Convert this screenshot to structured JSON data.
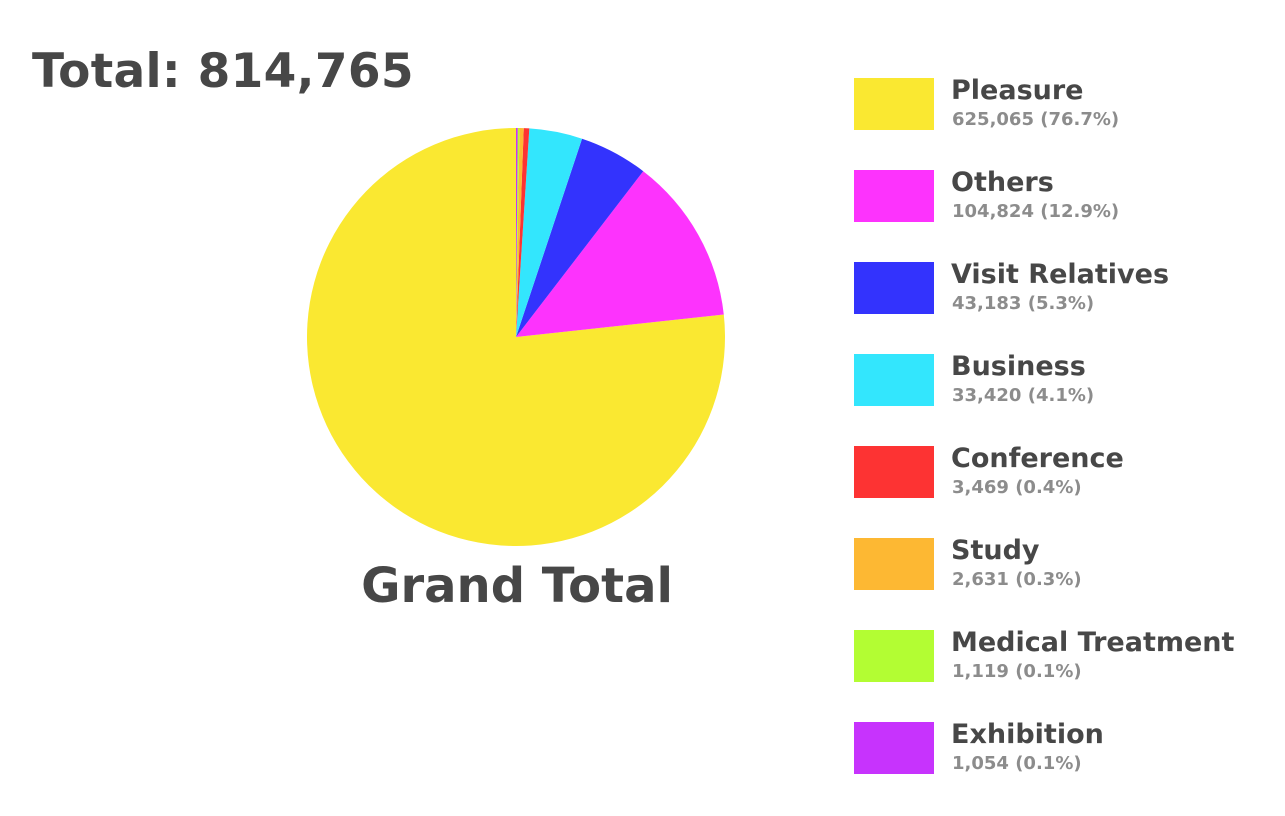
{
  "header": {
    "total_text": "Total: 814,765"
  },
  "chart_data": {
    "type": "pie",
    "title": "Grand Total",
    "total": 814765,
    "legend_position": "right",
    "slices": [
      {
        "name": "Pleasure",
        "value": 625065,
        "percent": 76.7,
        "label": "625,065 (76.7%)",
        "color": "#fae831"
      },
      {
        "name": "Others",
        "value": 104824,
        "percent": 12.9,
        "label": "104,824 (12.9%)",
        "color": "#fd33fd"
      },
      {
        "name": "Visit Relatives",
        "value": 43183,
        "percent": 5.3,
        "label": "43,183 (5.3%)",
        "color": "#3333fd"
      },
      {
        "name": "Business",
        "value": 33420,
        "percent": 4.1,
        "label": "33,420 (4.1%)",
        "color": "#33e6fd"
      },
      {
        "name": "Conference",
        "value": 3469,
        "percent": 0.4,
        "label": "3,469 (0.4%)",
        "color": "#fd3333"
      },
      {
        "name": "Study",
        "value": 2631,
        "percent": 0.3,
        "label": "2,631 (0.3%)",
        "color": "#fdb833"
      },
      {
        "name": "Medical Treatment",
        "value": 1119,
        "percent": 0.1,
        "label": "1,119 (0.1%)",
        "color": "#b3fd33"
      },
      {
        "name": "Exhibition",
        "value": 1054,
        "percent": 0.1,
        "label": "1,054 (0.1%)",
        "color": "#c733fd"
      }
    ]
  }
}
